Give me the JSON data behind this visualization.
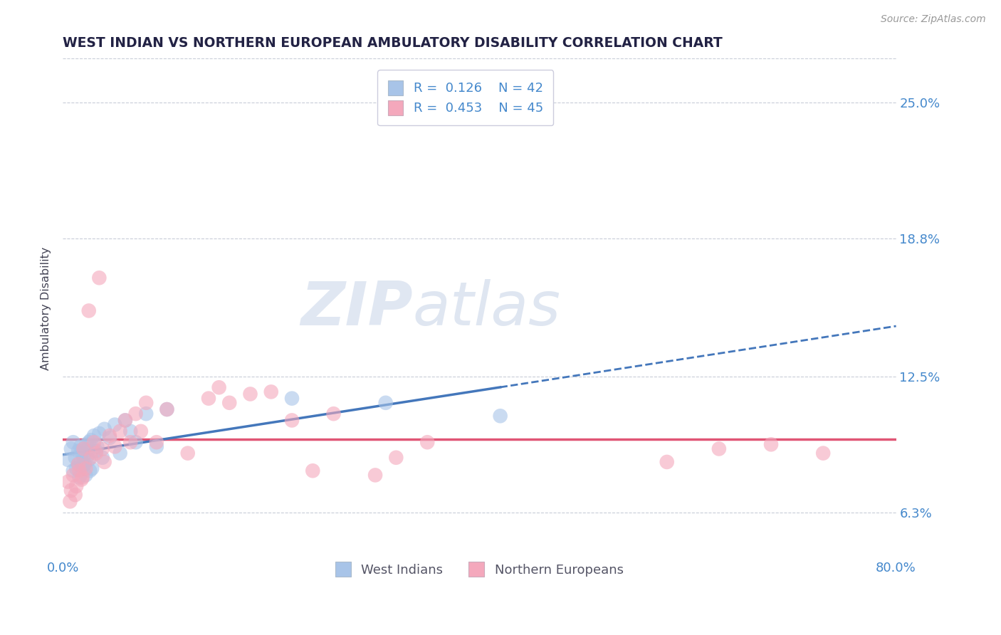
{
  "title": "WEST INDIAN VS NORTHERN EUROPEAN AMBULATORY DISABILITY CORRELATION CHART",
  "source": "Source: ZipAtlas.com",
  "ylabel": "Ambulatory Disability",
  "xlim": [
    0.0,
    0.8
  ],
  "ylim": [
    0.042,
    0.27
  ],
  "yticks": [
    0.063,
    0.125,
    0.188,
    0.25
  ],
  "ytick_labels": [
    "6.3%",
    "12.5%",
    "18.8%",
    "25.0%"
  ],
  "xticks": [
    0.0,
    0.1,
    0.2,
    0.3,
    0.4,
    0.5,
    0.6,
    0.7,
    0.8
  ],
  "west_indian_color": "#a8c4e8",
  "northern_european_color": "#f4a8bc",
  "west_indian_line_color": "#4477bb",
  "northern_european_line_color": "#e05575",
  "r_west_indian": 0.126,
  "n_west_indian": 42,
  "r_northern_european": 0.453,
  "n_northern_european": 45,
  "legend_label_1": "West Indians",
  "legend_label_2": "Northern Europeans",
  "watermark_zip": "ZIP",
  "watermark_atlas": "atlas",
  "background_color": "#ffffff",
  "west_indian_x": [
    0.005,
    0.008,
    0.01,
    0.01,
    0.012,
    0.013,
    0.015,
    0.015,
    0.016,
    0.017,
    0.018,
    0.018,
    0.019,
    0.02,
    0.02,
    0.021,
    0.022,
    0.023,
    0.024,
    0.025,
    0.025,
    0.026,
    0.027,
    0.028,
    0.03,
    0.032,
    0.033,
    0.035,
    0.038,
    0.04,
    0.045,
    0.05,
    0.055,
    0.06,
    0.065,
    0.07,
    0.08,
    0.09,
    0.1,
    0.22,
    0.31,
    0.42
  ],
  "west_indian_y": [
    0.087,
    0.092,
    0.095,
    0.082,
    0.088,
    0.083,
    0.091,
    0.085,
    0.079,
    0.093,
    0.086,
    0.09,
    0.084,
    0.092,
    0.088,
    0.085,
    0.08,
    0.094,
    0.089,
    0.087,
    0.095,
    0.082,
    0.096,
    0.083,
    0.098,
    0.091,
    0.093,
    0.099,
    0.088,
    0.101,
    0.097,
    0.103,
    0.09,
    0.105,
    0.1,
    0.095,
    0.108,
    0.093,
    0.11,
    0.115,
    0.113,
    0.107
  ],
  "northern_european_x": [
    0.005,
    0.007,
    0.008,
    0.01,
    0.012,
    0.013,
    0.015,
    0.016,
    0.018,
    0.019,
    0.02,
    0.022,
    0.025,
    0.027,
    0.03,
    0.032,
    0.035,
    0.038,
    0.04,
    0.045,
    0.05,
    0.055,
    0.06,
    0.065,
    0.07,
    0.075,
    0.08,
    0.09,
    0.1,
    0.12,
    0.14,
    0.15,
    0.16,
    0.18,
    0.2,
    0.22,
    0.24,
    0.26,
    0.3,
    0.32,
    0.35,
    0.58,
    0.63,
    0.68,
    0.73
  ],
  "northern_european_y": [
    0.077,
    0.068,
    0.073,
    0.08,
    0.071,
    0.075,
    0.085,
    0.082,
    0.078,
    0.079,
    0.092,
    0.083,
    0.155,
    0.088,
    0.095,
    0.09,
    0.17,
    0.092,
    0.086,
    0.098,
    0.093,
    0.1,
    0.105,
    0.095,
    0.108,
    0.1,
    0.113,
    0.095,
    0.11,
    0.09,
    0.115,
    0.12,
    0.113,
    0.117,
    0.118,
    0.105,
    0.082,
    0.108,
    0.08,
    0.088,
    0.095,
    0.086,
    0.092,
    0.094,
    0.09
  ]
}
